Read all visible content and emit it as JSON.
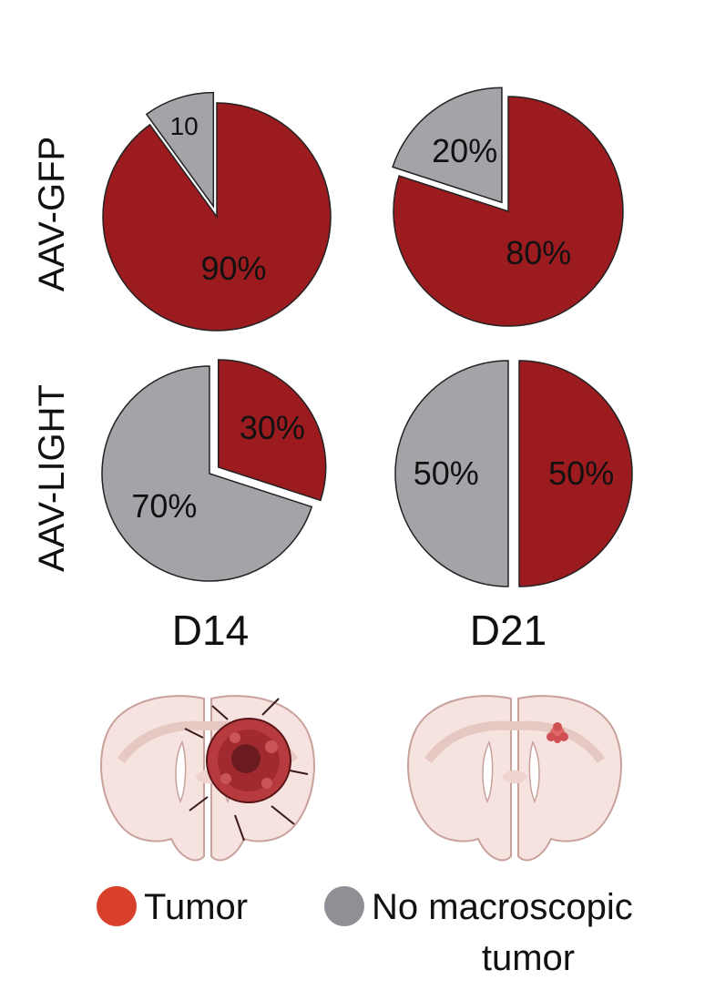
{
  "colors": {
    "tumor": "#9b1b1f",
    "no_tumor": "#a3a4a8",
    "legend_tumor": "#d8402b",
    "legend_no_tumor": "#8e9096",
    "brain_fill": "#f6e2df",
    "brain_stroke": "#c9a19b",
    "tumor_mass": "#b63a3e"
  },
  "chart_data": [
    {
      "type": "pie",
      "row": "AAV-GFP",
      "column": "D14",
      "slices": [
        {
          "category": "No macroscopic tumor",
          "value": 10,
          "label": "10",
          "exploded": true
        },
        {
          "category": "Tumor",
          "value": 90,
          "label": "90%",
          "exploded": false
        }
      ]
    },
    {
      "type": "pie",
      "row": "AAV-GFP",
      "column": "D21",
      "slices": [
        {
          "category": "No macroscopic tumor",
          "value": 20,
          "label": "20%",
          "exploded": true
        },
        {
          "category": "Tumor",
          "value": 80,
          "label": "80%",
          "exploded": false
        }
      ]
    },
    {
      "type": "pie",
      "row": "AAV-LIGHT",
      "column": "D14",
      "slices": [
        {
          "category": "Tumor",
          "value": 30,
          "label": "30%",
          "exploded": true
        },
        {
          "category": "No macroscopic tumor",
          "value": 70,
          "label": "70%",
          "exploded": false
        }
      ]
    },
    {
      "type": "pie",
      "row": "AAV-LIGHT",
      "column": "D21",
      "slices": [
        {
          "category": "Tumor",
          "value": 50,
          "label": "50%",
          "exploded": true
        },
        {
          "category": "No macroscopic tumor",
          "value": 50,
          "label": "50%",
          "exploded": false
        }
      ]
    }
  ],
  "row_labels": [
    "AAV-GFP",
    "AAV-LIGHT"
  ],
  "column_labels": [
    "D14",
    "D21"
  ],
  "legend": {
    "placement": "bottom",
    "tumor_label": "Tumor",
    "no_tumor_line1": "No macroscopic",
    "no_tumor_line2": "tumor"
  },
  "illustrations": [
    "brain-section-large-tumor-icon",
    "brain-section-small-tumor-icon"
  ]
}
